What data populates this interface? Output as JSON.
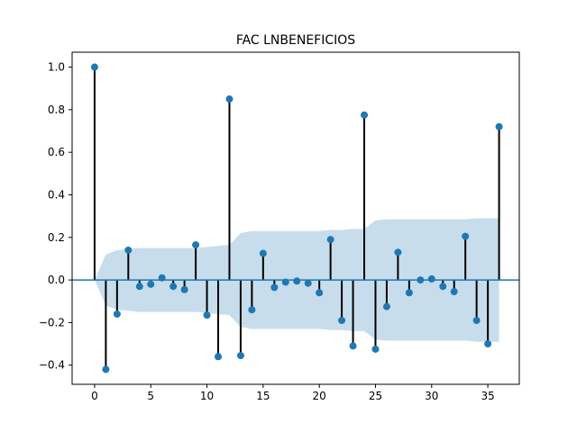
{
  "chart_data": {
    "type": "stem",
    "title": "FAC LNBENEFICIOS",
    "xlabel": "",
    "ylabel": "",
    "xlim": [
      -2,
      37.8
    ],
    "ylim": [
      -0.49,
      1.07
    ],
    "x_ticks": [
      0,
      5,
      10,
      15,
      20,
      25,
      30,
      35
    ],
    "y_ticks": [
      -0.4,
      -0.2,
      0.0,
      0.2,
      0.4,
      0.6,
      0.8,
      1.0
    ],
    "x_tick_labels": [
      "0",
      "5",
      "10",
      "15",
      "20",
      "25",
      "30",
      "35"
    ],
    "y_tick_labels": [
      "−0.4",
      "−0.2",
      "0.0",
      "0.2",
      "0.4",
      "0.6",
      "0.8",
      "1.0"
    ],
    "lags": [
      0,
      1,
      2,
      3,
      4,
      5,
      6,
      7,
      8,
      9,
      10,
      11,
      12,
      13,
      14,
      15,
      16,
      17,
      18,
      19,
      20,
      21,
      22,
      23,
      24,
      25,
      26,
      27,
      28,
      29,
      30,
      31,
      32,
      33,
      34,
      35,
      36
    ],
    "acf": [
      1.0,
      -0.42,
      -0.16,
      0.14,
      -0.03,
      -0.02,
      0.01,
      -0.03,
      -0.045,
      0.165,
      -0.165,
      -0.36,
      0.85,
      -0.355,
      -0.14,
      0.125,
      -0.035,
      -0.01,
      -0.005,
      -0.015,
      -0.06,
      0.19,
      -0.19,
      -0.31,
      0.775,
      -0.325,
      -0.125,
      0.13,
      -0.06,
      0.0,
      0.005,
      -0.03,
      -0.055,
      0.205,
      -0.19,
      -0.3,
      0.72
    ],
    "confidence_band": [
      0.0,
      0.12,
      0.14,
      0.145,
      0.15,
      0.15,
      0.15,
      0.15,
      0.15,
      0.15,
      0.155,
      0.16,
      0.165,
      0.22,
      0.23,
      0.23,
      0.23,
      0.23,
      0.23,
      0.23,
      0.23,
      0.235,
      0.235,
      0.24,
      0.24,
      0.28,
      0.285,
      0.285,
      0.285,
      0.285,
      0.285,
      0.285,
      0.285,
      0.285,
      0.29,
      0.29,
      0.29
    ],
    "grid": false,
    "legend": "none",
    "colors": {
      "marker": "#1f77b4",
      "stem": "#000000",
      "zero_line": "#1f77b4",
      "band": "#1f77b4"
    }
  }
}
